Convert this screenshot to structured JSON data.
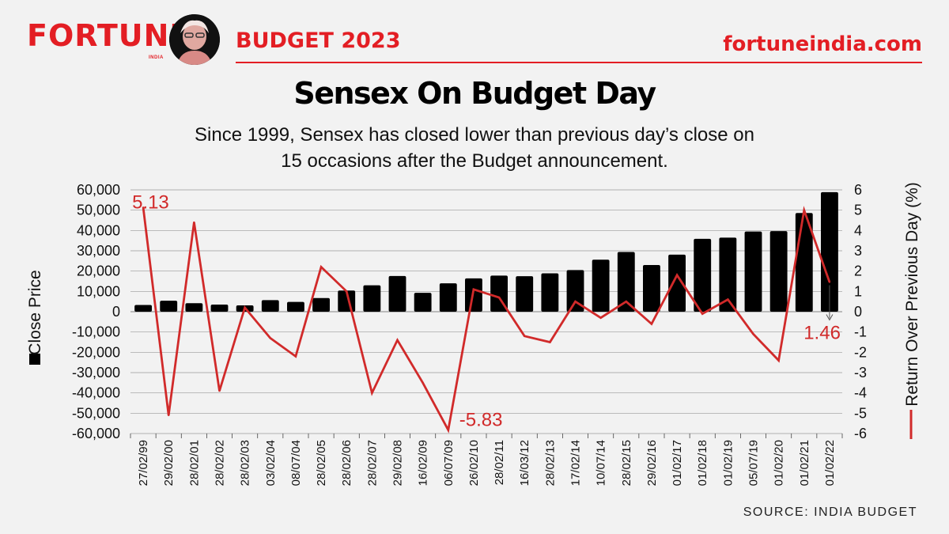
{
  "header": {
    "brand": "FORTUNE",
    "brand_sub": "INDIA",
    "budget_label": "BUDGET 2023",
    "site": "fortuneindia.com"
  },
  "source": "SOURCE: INDIA BUDGET",
  "colors": {
    "accent": "#e31e24",
    "bar": "#000000",
    "line": "#d12a2a",
    "grid": "#9a9a9a"
  },
  "chart_data": {
    "type": "bar",
    "title": "Sensex On Budget Day",
    "subtitle_lines": [
      "Since 1999, Sensex has closed lower than previous day’s close on",
      "15 occasions after the Budget announcement."
    ],
    "categories": [
      "27/02/99",
      "29/02/00",
      "28/02/01",
      "28/02/02",
      "28/02/03",
      "03/02/04",
      "08/07/04",
      "28/02/05",
      "28/02/06",
      "28/02/07",
      "29/02/08",
      "16/02/09",
      "06/07/09",
      "26/02/10",
      "28/02/11",
      "16/03/12",
      "28/02/13",
      "17/02/14",
      "10/07/14",
      "28/02/15",
      "29/02/16",
      "01/02/17",
      "01/02/18",
      "01/02/19",
      "05/07/19",
      "01/02/20",
      "01/02/21",
      "01/02/22"
    ],
    "series": [
      {
        "name": "Close Price",
        "type": "bar",
        "axis": "left",
        "values": [
          3300,
          5400,
          4200,
          3500,
          3100,
          5700,
          4800,
          6700,
          10400,
          13000,
          17600,
          9300,
          14000,
          16400,
          17800,
          17500,
          18900,
          20500,
          25600,
          29400,
          23000,
          28100,
          35900,
          36500,
          39500,
          39700,
          48600,
          58900
        ]
      },
      {
        "name": "Return Over Previous Day (%)",
        "type": "line",
        "axis": "right",
        "values": [
          5.13,
          -5.1,
          4.4,
          -3.9,
          0.2,
          -1.3,
          -2.2,
          2.2,
          1.0,
          -4.0,
          -1.4,
          -3.5,
          -5.83,
          1.1,
          0.7,
          -1.2,
          -1.5,
          0.5,
          -0.3,
          0.5,
          -0.6,
          1.8,
          -0.1,
          0.6,
          -1.1,
          -2.4,
          5.0,
          1.46
        ]
      }
    ],
    "ylabel_left": "Close Price",
    "ylabel_right": "Return Over Previous Day (%)",
    "ylim_left": [
      -60000,
      60000
    ],
    "ylim_right": [
      -6,
      6
    ],
    "yticks_left": [
      "60,000",
      "50,000",
      "40,000",
      "30,000",
      "20,000",
      "10,000",
      "0",
      "-10,000",
      "-20,000",
      "-30,000",
      "-40,000",
      "-50,000",
      "-60,000"
    ],
    "yticks_right": [
      "6",
      "5",
      "4",
      "3",
      "2",
      "1",
      "0",
      "-1",
      "-2",
      "-3",
      "-4",
      "-5",
      "-6"
    ],
    "annotations": [
      {
        "label": "5.13",
        "index": 0
      },
      {
        "label": "-5.83",
        "index": 12
      },
      {
        "label": "1.46",
        "index": 27
      }
    ],
    "grid": true,
    "legend": "axis-labels"
  }
}
